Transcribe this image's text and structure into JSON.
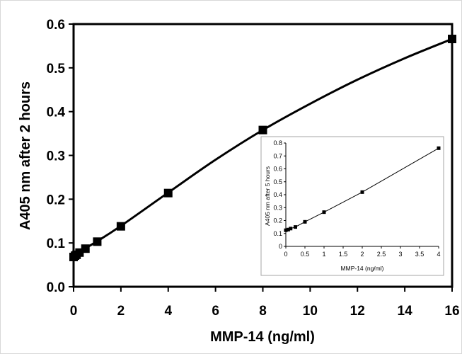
{
  "chart_data": [
    {
      "type": "scatter",
      "title": "",
      "xlabel": "MMP-14 (ng/ml)",
      "ylabel": "A405 nm after 2 hours",
      "xlim": [
        0,
        16
      ],
      "ylim": [
        0,
        0.6
      ],
      "xticks": [
        "0",
        "2",
        "4",
        "6",
        "8",
        "10",
        "12",
        "14",
        "16"
      ],
      "yticks": [
        "0.0",
        "0.1",
        "0.2",
        "0.3",
        "0.4",
        "0.5",
        "0.6"
      ],
      "grid": false,
      "legend": "none",
      "fit_line": "smooth curve",
      "series": [
        {
          "x": [
            0,
            0.0625,
            0.125,
            0.25,
            0.5,
            1,
            2,
            4,
            8,
            16
          ],
          "y": [
            0.068,
            0.071,
            0.073,
            0.078,
            0.087,
            0.103,
            0.138,
            0.214,
            0.358,
            0.566
          ]
        }
      ],
      "curve": {
        "x": [
          0,
          1,
          2,
          4,
          6,
          8,
          10,
          12,
          14,
          16
        ],
        "y": [
          0.072,
          0.104,
          0.139,
          0.215,
          0.29,
          0.358,
          0.418,
          0.473,
          0.522,
          0.566
        ]
      }
    },
    {
      "type": "line",
      "title": "",
      "xlabel": "MMP-14 (ng/ml)",
      "ylabel": "A405 nm after 5 hours",
      "xlim": [
        0,
        4
      ],
      "ylim": [
        0,
        0.8
      ],
      "xticks": [
        "0",
        "0.5",
        "1",
        "1.5",
        "2",
        "2.5",
        "3",
        "3.5",
        "4"
      ],
      "yticks": [
        "0",
        "0.1",
        "0.2",
        "0.3",
        "0.4",
        "0.5",
        "0.6",
        "0.7",
        "0.8"
      ],
      "grid": false,
      "legend": "none",
      "series": [
        {
          "x": [
            0,
            0.0625,
            0.125,
            0.25,
            0.5,
            1,
            2,
            4
          ],
          "y": [
            0.125,
            0.13,
            0.138,
            0.15,
            0.19,
            0.265,
            0.42,
            0.76
          ]
        }
      ]
    }
  ]
}
